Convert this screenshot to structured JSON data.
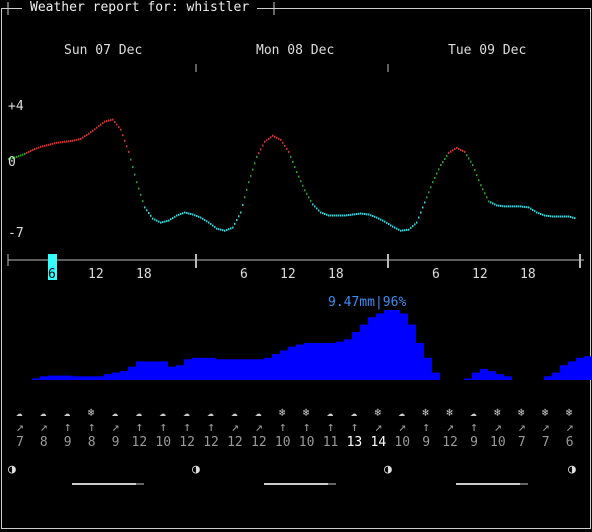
{
  "header": {
    "title": "Weather report for: whistler"
  },
  "days": [
    "Sun 07 Dec",
    "Mon 08 Dec",
    "Tue 09 Dec"
  ],
  "chart_data": [
    {
      "type": "line",
      "title": "",
      "y_tick_labels": [
        "+4",
        "0",
        "-7"
      ],
      "ylim": [
        -8,
        5
      ],
      "x_hour_labels": [
        "12",
        "18",
        "6",
        "12",
        "18",
        "6",
        "12",
        "18"
      ],
      "cursor_label": "6",
      "colors": {
        "warm": "#e03030",
        "mild": "#22aa22",
        "cold": "#30d8e0"
      },
      "note": "temperature trace, hourly",
      "x": [
        0,
        1,
        2,
        3,
        4,
        5,
        6,
        7,
        8,
        9,
        10,
        11,
        12,
        13,
        14,
        15,
        16,
        17,
        18,
        19,
        20,
        21,
        22,
        23,
        24,
        25,
        26,
        27,
        28,
        29,
        30,
        31,
        32,
        33,
        34,
        35,
        36,
        37,
        38,
        39,
        40,
        41,
        42,
        43,
        44,
        45,
        46,
        47,
        48,
        49,
        50,
        51,
        52,
        53,
        54,
        55,
        56,
        57,
        58,
        59,
        60,
        61,
        62,
        63,
        64,
        65,
        66,
        67,
        68,
        69,
        70,
        71
      ],
      "y": [
        0.3,
        0.5,
        0.8,
        1.2,
        1.5,
        1.7,
        1.9,
        2.0,
        2.1,
        2.3,
        2.8,
        3.4,
        4.0,
        4.2,
        3.2,
        1.0,
        -2.0,
        -4.5,
        -5.6,
        -6.0,
        -5.8,
        -5.3,
        -5.0,
        -5.2,
        -5.5,
        -6.0,
        -6.6,
        -6.8,
        -6.5,
        -5.0,
        -2.0,
        0.5,
        2.0,
        2.6,
        2.2,
        1.0,
        -1.0,
        -2.8,
        -4.2,
        -5.0,
        -5.3,
        -5.3,
        -5.3,
        -5.2,
        -5.1,
        -5.2,
        -5.5,
        -5.9,
        -6.4,
        -6.8,
        -6.7,
        -6.0,
        -4.0,
        -2.0,
        -0.3,
        0.9,
        1.4,
        1.0,
        -0.3,
        -2.3,
        -3.9,
        -4.3,
        -4.4,
        -4.4,
        -4.4,
        -4.5,
        -5.0,
        -5.3,
        -5.4,
        -5.4,
        -5.4,
        -5.6
      ]
    },
    {
      "type": "bar",
      "title": "",
      "peak_label": "9.47mm|96%",
      "color": "#0000ff",
      "values": [
        0,
        0,
        0,
        0.2,
        0.5,
        0.6,
        0.6,
        0.6,
        0.5,
        0.5,
        0.5,
        0.5,
        0.8,
        1.0,
        1.2,
        1.8,
        2.5,
        2.5,
        2.5,
        2.5,
        1.8,
        2.0,
        2.8,
        3.0,
        3.0,
        3.0,
        2.8,
        2.8,
        2.8,
        2.8,
        2.8,
        2.8,
        3.0,
        3.5,
        4.0,
        4.5,
        4.8,
        5.0,
        5.0,
        5.0,
        5.0,
        5.2,
        5.5,
        6.5,
        7.5,
        8.5,
        9.0,
        9.47,
        9.47,
        9.0,
        7.5,
        5.0,
        3.0,
        1.0,
        0,
        0,
        0,
        0.2,
        1.0,
        1.5,
        1.2,
        0.8,
        0.5,
        0,
        0,
        0,
        0,
        0.5,
        1.0,
        2.0,
        2.5,
        3.0,
        3.2,
        3.2,
        3.2,
        1.0
      ]
    }
  ],
  "forecast": {
    "icons": [
      "☁",
      "☁",
      "☁",
      "❄",
      "☁",
      "☁",
      "☁",
      "☁",
      "☁",
      "☁",
      "☁",
      "❄",
      "❄",
      "☁",
      "☁",
      "❄",
      "☁",
      "❄",
      "❄",
      "☁",
      "❄",
      "❄",
      "❄",
      "❄"
    ],
    "icon_names": [
      "cloud-icon",
      "cloud-snow-icon",
      "cloud-snow-icon",
      "snowflake-icon",
      "cloud-snow-icon",
      "cloud-snow-icon",
      "cloud-snow-icon",
      "cloud-snow-icon",
      "cloud-snow-icon",
      "cloud-snow-icon",
      "cloud-snow-icon",
      "snowflake-icon",
      "snowflake-icon",
      "cloud-snow-icon",
      "cloud-snow-icon",
      "snowflake-icon",
      "cloud-sun-icon",
      "snowflake-icon",
      "snowflake-icon",
      "cloud-sun-icon",
      "snowflake-icon",
      "snowflake-icon",
      "snowflake-icon",
      "snowflake-icon"
    ],
    "arrows": [
      "↗",
      "↗",
      "↑",
      "↑",
      "↗",
      "↑",
      "↑",
      "↑",
      "↑",
      "↗",
      "↗",
      "↑",
      "↑",
      "↑",
      "↑",
      "↗",
      "↗",
      "↑",
      "↗",
      "↑",
      "↗",
      "↗",
      "↗",
      "↗"
    ],
    "wind": [
      "7",
      "8",
      "9",
      "8",
      "9",
      "12",
      "10",
      "12",
      "12",
      "12",
      "12",
      "10",
      "10",
      "11",
      "13",
      "14",
      "10",
      "9",
      "12",
      "9",
      "10",
      "7",
      "7",
      "6"
    ],
    "wind_bright": [
      false,
      false,
      false,
      false,
      false,
      false,
      false,
      false,
      false,
      false,
      false,
      false,
      false,
      false,
      true,
      true,
      false,
      false,
      false,
      false,
      false,
      false,
      false,
      false
    ]
  },
  "moon": {
    "symbol": "◑",
    "count": 4
  }
}
